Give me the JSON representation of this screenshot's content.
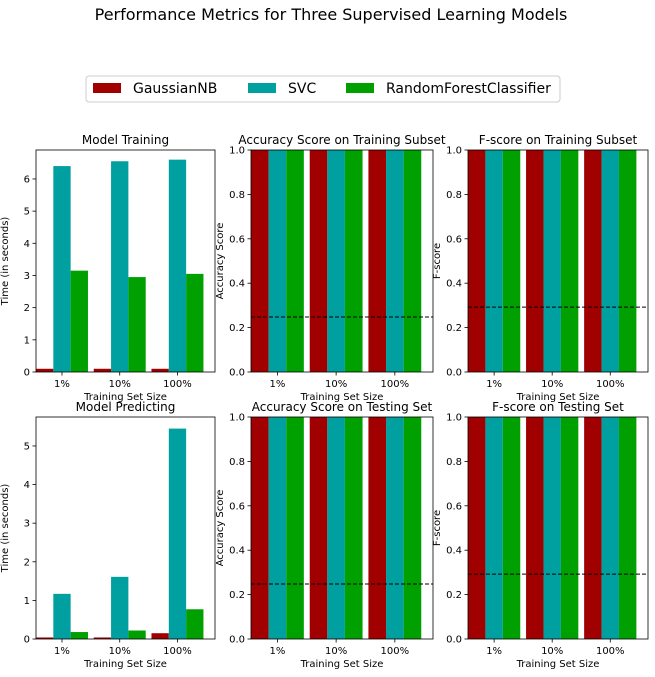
{
  "suptitle": "Performance Metrics for Three Supervised Learning Models",
  "legend": [
    {
      "name": "GaussianNB",
      "color": "#A00000"
    },
    {
      "name": "SVC",
      "color": "#00A0A0"
    },
    {
      "name": "RandomForestClassifier",
      "color": "#00A000"
    }
  ],
  "chart_data": [
    {
      "type": "bar",
      "title": "Model Training",
      "xlabel": "Training Set Size",
      "ylabel": "Time (in seconds)",
      "categories": [
        "1%",
        "10%",
        "100%"
      ],
      "ylim": [
        0,
        6.9
      ],
      "yticks": [
        "0",
        "1",
        "2",
        "3",
        "4",
        "5",
        "6"
      ],
      "series": [
        {
          "name": "GaussianNB",
          "values": [
            0.1,
            0.1,
            0.1
          ]
        },
        {
          "name": "SVC",
          "values": [
            6.4,
            6.55,
            6.6
          ]
        },
        {
          "name": "RandomForestClassifier",
          "values": [
            3.15,
            2.95,
            3.05
          ]
        }
      ]
    },
    {
      "type": "bar",
      "title": "Accuracy Score on Training Subset",
      "xlabel": "Training Set Size",
      "ylabel": "Accuracy Score",
      "categories": [
        "1%",
        "10%",
        "100%"
      ],
      "ylim": [
        0,
        1.0
      ],
      "yticks": [
        "0.0",
        "0.2",
        "0.4",
        "0.6",
        "0.8",
        "1.0"
      ],
      "baseline": 0.248,
      "series": [
        {
          "name": "GaussianNB",
          "values": [
            1.0,
            1.0,
            1.0
          ]
        },
        {
          "name": "SVC",
          "values": [
            1.0,
            1.0,
            1.0
          ]
        },
        {
          "name": "RandomForestClassifier",
          "values": [
            1.0,
            1.0,
            1.0
          ]
        }
      ]
    },
    {
      "type": "bar",
      "title": "F-score on Training Subset",
      "xlabel": "Training Set Size",
      "ylabel": "F-score",
      "categories": [
        "1%",
        "10%",
        "100%"
      ],
      "ylim": [
        0,
        1.0
      ],
      "yticks": [
        "0.0",
        "0.2",
        "0.4",
        "0.6",
        "0.8",
        "1.0"
      ],
      "baseline": 0.292,
      "series": [
        {
          "name": "GaussianNB",
          "values": [
            1.0,
            1.0,
            1.0
          ]
        },
        {
          "name": "SVC",
          "values": [
            1.0,
            1.0,
            1.0
          ]
        },
        {
          "name": "RandomForestClassifier",
          "values": [
            1.0,
            1.0,
            1.0
          ]
        }
      ]
    },
    {
      "type": "bar",
      "title": "Model Predicting",
      "xlabel": "Training Set Size",
      "ylabel": "Time (in seconds)",
      "categories": [
        "1%",
        "10%",
        "100%"
      ],
      "ylim": [
        0,
        5.75
      ],
      "yticks": [
        "0",
        "1",
        "2",
        "3",
        "4",
        "5"
      ],
      "series": [
        {
          "name": "GaussianNB",
          "values": [
            0.04,
            0.04,
            0.15
          ]
        },
        {
          "name": "SVC",
          "values": [
            1.17,
            1.61,
            5.45
          ]
        },
        {
          "name": "RandomForestClassifier",
          "values": [
            0.18,
            0.22,
            0.77
          ]
        }
      ]
    },
    {
      "type": "bar",
      "title": "Accuracy Score on Testing Set",
      "xlabel": "Training Set Size",
      "ylabel": "Accuracy Score",
      "categories": [
        "1%",
        "10%",
        "100%"
      ],
      "ylim": [
        0,
        1.0
      ],
      "yticks": [
        "0.0",
        "0.2",
        "0.4",
        "0.6",
        "0.8",
        "1.0"
      ],
      "baseline": 0.248,
      "series": [
        {
          "name": "GaussianNB",
          "values": [
            1.0,
            1.0,
            1.0
          ]
        },
        {
          "name": "SVC",
          "values": [
            1.0,
            1.0,
            1.0
          ]
        },
        {
          "name": "RandomForestClassifier",
          "values": [
            1.0,
            1.0,
            1.0
          ]
        }
      ]
    },
    {
      "type": "bar",
      "title": "F-score on Testing Set",
      "xlabel": "Training Set Size",
      "ylabel": "F-score",
      "categories": [
        "1%",
        "10%",
        "100%"
      ],
      "ylim": [
        0,
        1.0
      ],
      "yticks": [
        "0.0",
        "0.2",
        "0.4",
        "0.6",
        "0.8",
        "1.0"
      ],
      "baseline": 0.292,
      "series": [
        {
          "name": "GaussianNB",
          "values": [
            1.0,
            1.0,
            1.0
          ]
        },
        {
          "name": "SVC",
          "values": [
            1.0,
            1.0,
            1.0
          ]
        },
        {
          "name": "RandomForestClassifier",
          "values": [
            1.0,
            1.0,
            1.0
          ]
        }
      ]
    }
  ]
}
